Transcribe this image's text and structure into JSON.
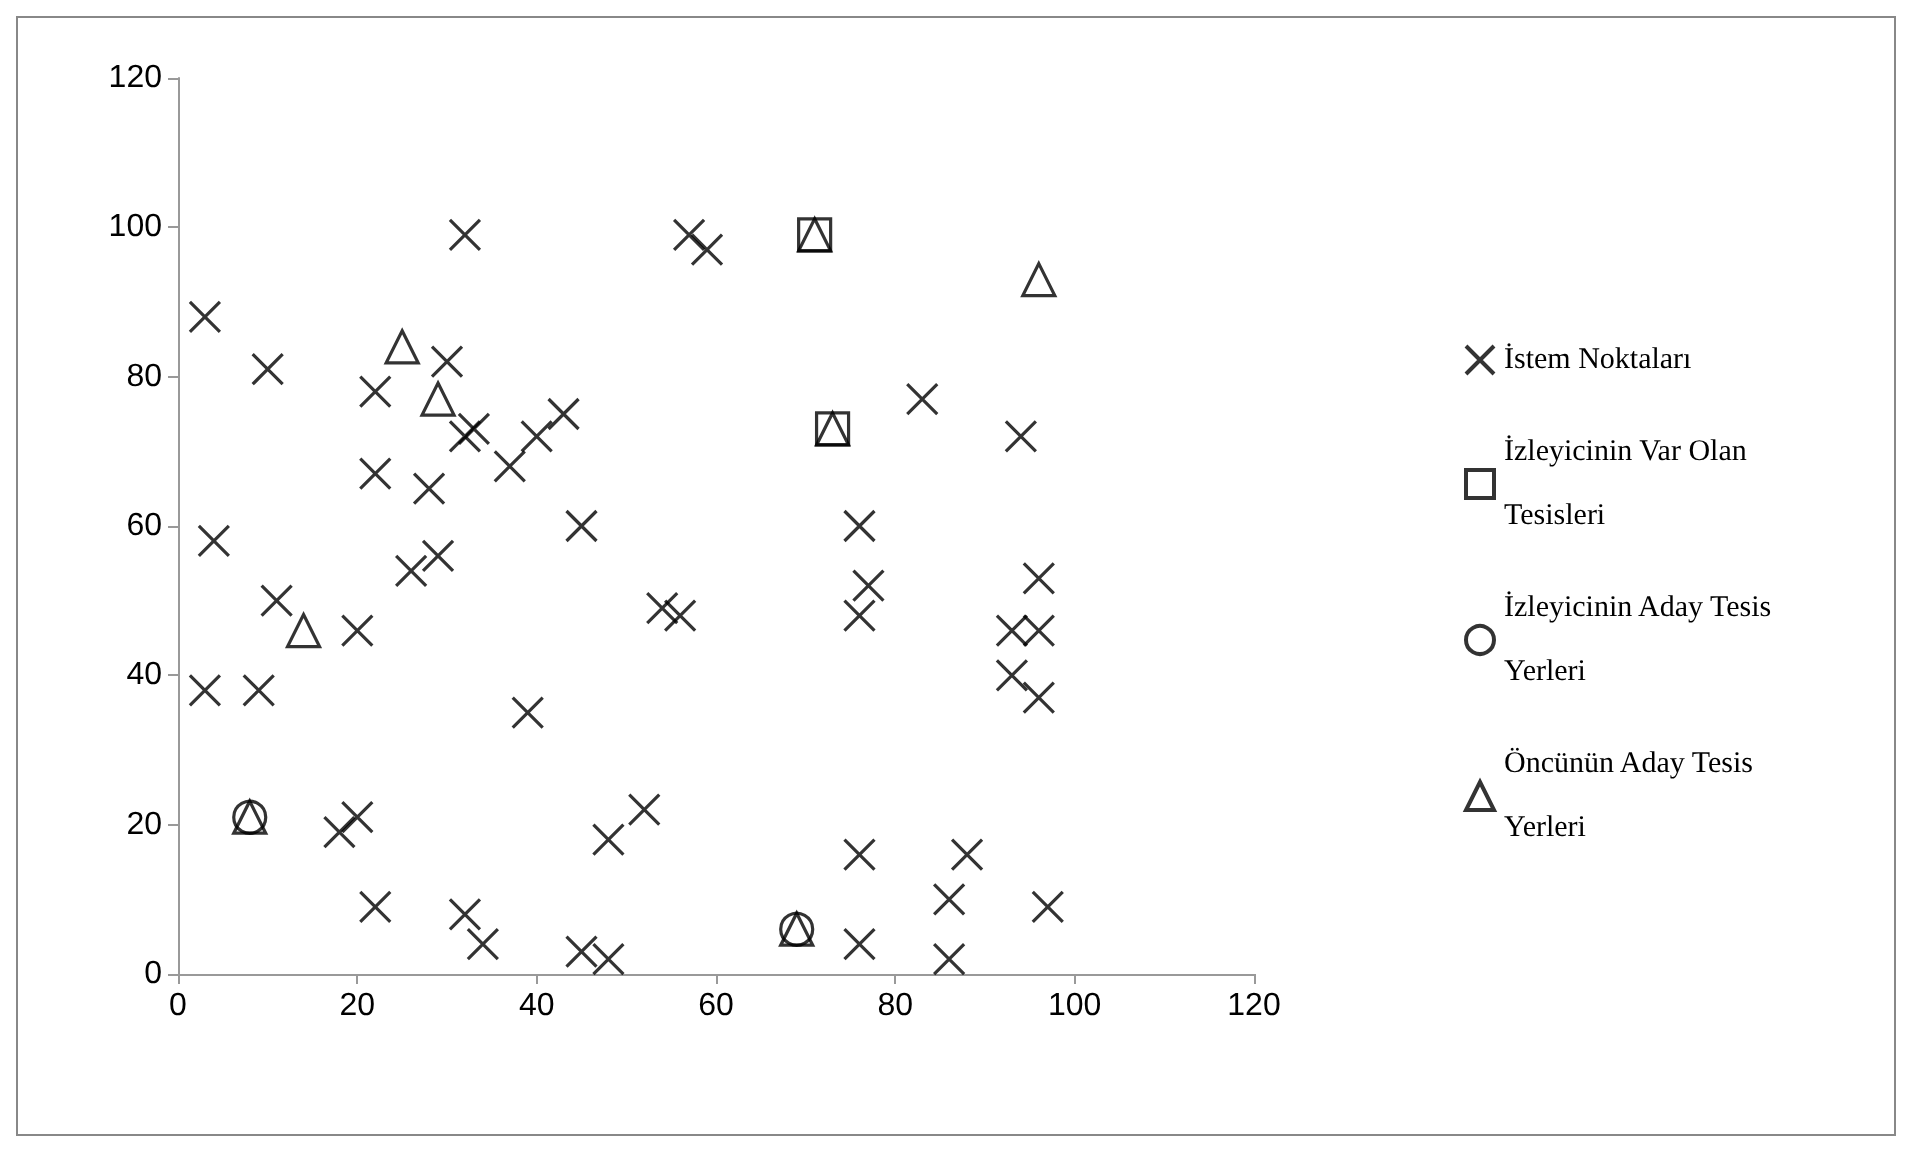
{
  "chart_data": {
    "type": "scatter",
    "xlim": [
      0,
      120
    ],
    "xticks": [
      0,
      20,
      40,
      60,
      80,
      100,
      120
    ],
    "ylim": [
      0,
      120
    ],
    "yticks": [
      0,
      20,
      40,
      60,
      80,
      100,
      120
    ],
    "grid": false,
    "legend": "right",
    "series": [
      {
        "name": "İstem Noktaları",
        "color": "#000000",
        "marker": "cross",
        "x": [
          3,
          10,
          4,
          11,
          3,
          9,
          32,
          22,
          30,
          22,
          28,
          33,
          32,
          37,
          40,
          43,
          26,
          29,
          20,
          39,
          45,
          54,
          56,
          57,
          59,
          83,
          94,
          76,
          77,
          76,
          96,
          93,
          96,
          93,
          96,
          18,
          20,
          22,
          32,
          34,
          45,
          48,
          48,
          52,
          76,
          88,
          76,
          86,
          86,
          97
        ],
        "values": [
          88,
          81,
          58,
          50,
          38,
          38,
          99,
          78,
          82,
          67,
          65,
          73,
          72,
          68,
          72,
          75,
          54,
          56,
          46,
          35,
          60,
          49,
          48,
          99,
          97,
          77,
          72,
          60,
          52,
          48,
          53,
          46,
          46,
          40,
          37,
          19,
          21,
          9,
          8,
          4,
          3,
          2,
          18,
          22,
          16,
          16,
          4,
          10,
          2,
          9
        ]
      },
      {
        "name": "İzleyicinin Var Olan Tesisleri",
        "color": "#000000",
        "marker": "square",
        "x": [
          71,
          73
        ],
        "values": [
          99,
          73
        ]
      },
      {
        "name": "İzleyicinin Aday Tesis Yerleri",
        "color": "#000000",
        "marker": "circle",
        "x": [
          8,
          69
        ],
        "values": [
          21,
          6
        ]
      },
      {
        "name": "Öncünün Aday Tesis Yerleri",
        "color": "#000000",
        "marker": "triangle",
        "x": [
          25,
          29,
          14,
          96,
          71,
          73,
          8,
          69
        ],
        "values": [
          84,
          77,
          46,
          93,
          99,
          73,
          21,
          6
        ]
      }
    ]
  }
}
